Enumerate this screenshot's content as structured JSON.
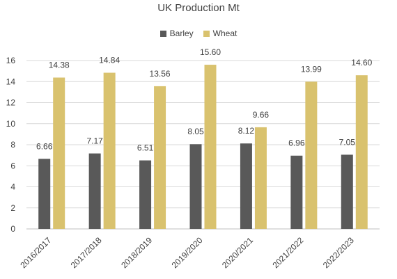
{
  "chart_data": {
    "type": "bar",
    "title": "UK Production Mt",
    "xlabel": "",
    "ylabel": "",
    "categories": [
      "2016/2017",
      "2017/2018",
      "2018/2019",
      "2019/2020",
      "2020/2021",
      "2021/2022",
      "2022/2023"
    ],
    "series": [
      {
        "name": "Barley",
        "color": "#595959",
        "values": [
          6.66,
          7.17,
          6.51,
          8.05,
          8.12,
          6.96,
          7.05
        ],
        "labels": [
          "6.66",
          "7.17",
          "6.51",
          "8.05",
          "8.12",
          "6.96",
          "7.05"
        ]
      },
      {
        "name": "Wheat",
        "color": "#d9c26e",
        "values": [
          14.38,
          14.84,
          13.56,
          15.6,
          9.66,
          13.99,
          14.6
        ],
        "labels": [
          "14.38",
          "14.84",
          "13.56",
          "15.60",
          "9.66",
          "13.99",
          "14.60"
        ]
      }
    ],
    "ylim": [
      0,
      16
    ],
    "yticks": [
      "0",
      "2",
      "4",
      "6",
      "8",
      "10",
      "12",
      "14",
      "16"
    ],
    "grid": true,
    "legend_position": "top"
  }
}
